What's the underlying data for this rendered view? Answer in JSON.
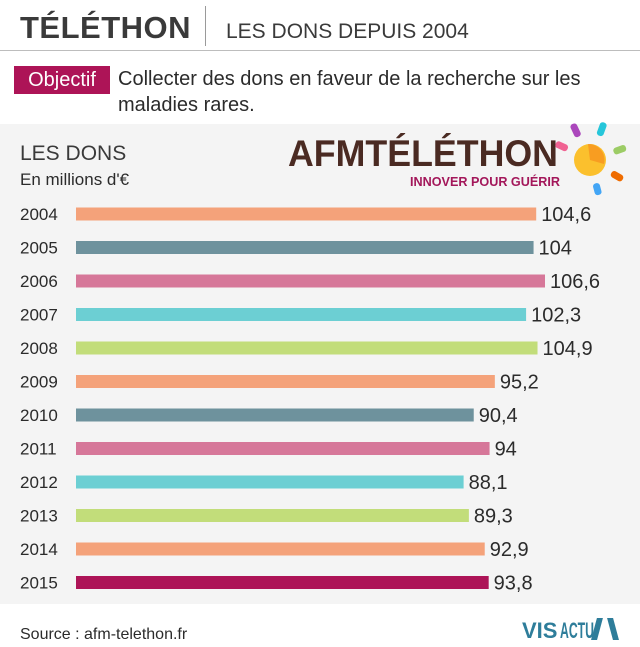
{
  "header": {
    "title": "TÉLÉTHON",
    "subtitle": "LES DONS DEPUIS 2004"
  },
  "objective": {
    "label": "Objectif",
    "text": "Collecter des dons en faveur de la recherche sur les maladies rares."
  },
  "logo": {
    "name": "AFMTÉLÉTHON",
    "tagline": "INNOVER POUR GUÉRIR",
    "icon": "sun-icon"
  },
  "colors": {
    "accent": "#ad1457",
    "orange": "#f4a27a",
    "slate": "#6e929d",
    "pink": "#d67799",
    "cyan": "#6ccfd3",
    "lime": "#c2dd7a"
  },
  "chart_data": {
    "type": "bar",
    "orientation": "horizontal",
    "title": "LES DONS",
    "unit": "En millions d'€",
    "categories": [
      "2004",
      "2005",
      "2006",
      "2007",
      "2008",
      "2009",
      "2010",
      "2011",
      "2012",
      "2013",
      "2014",
      "2015"
    ],
    "values": [
      104.6,
      104,
      106.6,
      102.3,
      104.9,
      95.2,
      90.4,
      94,
      88.1,
      89.3,
      92.9,
      93.8
    ],
    "value_labels": [
      "104,6",
      "104",
      "106,6",
      "102,3",
      "104,9",
      "95,2",
      "90,4",
      "94",
      "88,1",
      "89,3",
      "92,9",
      "93,8"
    ],
    "bar_colors": [
      "#f4a27a",
      "#6e929d",
      "#d67799",
      "#6ccfd3",
      "#c2dd7a",
      "#f4a27a",
      "#6e929d",
      "#d67799",
      "#6ccfd3",
      "#c2dd7a",
      "#f4a27a",
      "#ad1457"
    ],
    "xlim": [
      0,
      106.6
    ],
    "grid": false,
    "legend": "none"
  },
  "footer": {
    "source": "Source : afm-telethon.fr",
    "brand_left": "VIS",
    "brand_right": "ACTU",
    "brand_icon": "visactu-logo-icon"
  }
}
